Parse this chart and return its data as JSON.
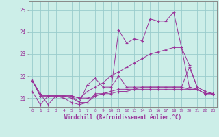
{
  "xlabel": "Windchill (Refroidissement éolien,°C)",
  "bg_color": "#cceee8",
  "grid_color": "#99cccc",
  "line_color": "#993399",
  "xlim": [
    -0.5,
    23.5
  ],
  "ylim": [
    20.6,
    25.4
  ],
  "yticks": [
    21,
    22,
    23,
    24,
    25
  ],
  "xticks": [
    0,
    1,
    2,
    3,
    4,
    5,
    6,
    7,
    8,
    9,
    10,
    11,
    12,
    13,
    14,
    15,
    16,
    17,
    18,
    19,
    20,
    21,
    22,
    23
  ],
  "series": [
    [
      21.8,
      21.2,
      20.7,
      21.1,
      21.1,
      21.1,
      20.8,
      20.8,
      21.1,
      21.2,
      21.3,
      24.1,
      23.5,
      23.7,
      23.6,
      24.6,
      24.5,
      24.5,
      24.9,
      23.3,
      21.5,
      21.4,
      21.2,
      21.2
    ],
    [
      21.8,
      21.1,
      21.1,
      21.1,
      21.1,
      21.1,
      21.0,
      21.0,
      21.1,
      21.2,
      21.2,
      21.3,
      21.3,
      21.4,
      21.4,
      21.4,
      21.4,
      21.4,
      21.4,
      21.4,
      21.4,
      21.4,
      21.2,
      21.2
    ],
    [
      21.8,
      21.1,
      21.1,
      21.1,
      21.1,
      21.1,
      21.0,
      21.3,
      21.5,
      21.7,
      22.0,
      22.2,
      22.4,
      22.6,
      22.8,
      23.0,
      23.1,
      23.2,
      23.3,
      23.3,
      22.5,
      21.5,
      21.3,
      21.2
    ],
    [
      21.8,
      21.1,
      21.1,
      21.1,
      21.1,
      21.0,
      20.8,
      21.6,
      21.9,
      21.5,
      21.5,
      22.0,
      21.5,
      21.5,
      21.5,
      21.5,
      21.5,
      21.5,
      21.5,
      21.5,
      22.4,
      21.5,
      21.3,
      21.2
    ],
    [
      21.3,
      20.7,
      21.1,
      21.1,
      21.0,
      20.8,
      20.7,
      20.8,
      21.2,
      21.2,
      21.3,
      21.4,
      21.4,
      21.4,
      21.5,
      21.5,
      21.5,
      21.5,
      21.5,
      21.5,
      21.4,
      21.4,
      21.2,
      21.2
    ]
  ]
}
